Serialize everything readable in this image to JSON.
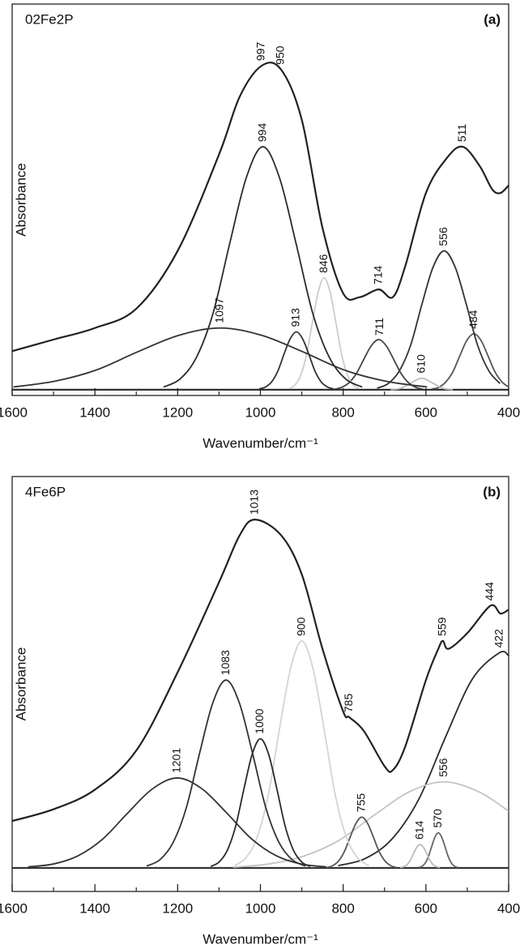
{
  "chart_data": [
    {
      "type": "line",
      "sample": "02Fe2P",
      "panel_label": "(a)",
      "x_label": "Wavenumber/cm⁻¹",
      "y_label": "Absorbance",
      "xlim": [
        1600,
        400
      ],
      "ylim": [
        -0.015,
        1
      ],
      "xticks": [
        1600,
        1400,
        1200,
        1000,
        800,
        600,
        400
      ],
      "xminorticks": [
        1500,
        1300,
        1100,
        900,
        700,
        500
      ],
      "series": [
        {
          "color": "#222222",
          "peak_labels": [
            997,
            950,
            714,
            511
          ],
          "x": [
            1600,
            1500,
            1400,
            1300,
            1200,
            1100,
            1050,
            997,
            950,
            900,
            850,
            800,
            760,
            714,
            680,
            650,
            600,
            550,
            511,
            470,
            440,
            420,
            400
          ],
          "values": [
            0.1,
            0.13,
            0.16,
            0.21,
            0.36,
            0.61,
            0.76,
            0.84,
            0.83,
            0.7,
            0.42,
            0.25,
            0.24,
            0.26,
            0.24,
            0.32,
            0.51,
            0.6,
            0.63,
            0.58,
            0.52,
            0.51,
            0.53
          ]
        },
        {
          "color": "#333333",
          "peak_labels": [
            1097
          ],
          "x": [
            1597,
            1497,
            1397,
            1297,
            1197,
            1097,
            997,
            897,
            797,
            697,
            597
          ],
          "values": [
            0.007,
            0.022,
            0.051,
            0.098,
            0.141,
            0.16,
            0.141,
            0.098,
            0.051,
            0.022,
            0.007
          ]
        },
        {
          "color": "#2a2a2a",
          "peak_labels": [
            994
          ],
          "x": [
            1234,
            1194,
            1154,
            1114,
            1074,
            1034,
            994,
            954,
            914,
            874,
            834,
            794,
            754
          ],
          "values": [
            0.007,
            0.028,
            0.085,
            0.2,
            0.38,
            0.55,
            0.63,
            0.55,
            0.38,
            0.2,
            0.085,
            0.028,
            0.007
          ]
        },
        {
          "color": "#333333",
          "peak_labels": [
            913
          ],
          "x": [
            1003,
            988,
            973,
            958,
            943,
            928,
            913,
            898,
            883,
            868,
            853,
            838,
            823
          ],
          "values": [
            0.002,
            0.007,
            0.02,
            0.048,
            0.092,
            0.132,
            0.15,
            0.132,
            0.092,
            0.048,
            0.02,
            0.007,
            0.002
          ]
        },
        {
          "color": "#cccccc",
          "peak_labels": [
            846
          ],
          "x": [
            930,
            916,
            902,
            888,
            874,
            860,
            846,
            832,
            818,
            804,
            790,
            776,
            762
          ],
          "values": [
            0.003,
            0.013,
            0.039,
            0.093,
            0.177,
            0.255,
            0.29,
            0.255,
            0.177,
            0.093,
            0.039,
            0.013,
            0.003
          ]
        },
        {
          "color": "#444444",
          "peak_labels": [
            711
          ],
          "x": [
            822,
            804,
            786,
            768,
            750,
            732,
            714,
            696,
            678,
            660,
            642,
            624,
            606
          ],
          "values": [
            0.001,
            0.006,
            0.018,
            0.042,
            0.079,
            0.114,
            0.13,
            0.114,
            0.079,
            0.042,
            0.018,
            0.006,
            0.001
          ]
        },
        {
          "color": "#bbbbbb",
          "peak_labels": [
            610
          ],
          "x": [
            685,
            660,
            635,
            610,
            585,
            560,
            535
          ],
          "values": [
            0.0,
            0.004,
            0.018,
            0.03,
            0.018,
            0.004,
            0.0
          ]
        },
        {
          "color": "#333333",
          "peak_labels": [
            556
          ],
          "x": [
            718,
            691,
            664,
            637,
            610,
            583,
            556,
            529,
            502,
            475,
            448,
            421
          ],
          "values": [
            0.004,
            0.016,
            0.049,
            0.115,
            0.22,
            0.317,
            0.36,
            0.317,
            0.22,
            0.115,
            0.049,
            0.016
          ]
        },
        {
          "color": "#555555",
          "peak_labels": [
            484
          ],
          "x": [
            586,
            569,
            552,
            535,
            518,
            501,
            484,
            467,
            450,
            433,
            416,
            400
          ],
          "values": [
            0.002,
            0.006,
            0.02,
            0.046,
            0.088,
            0.128,
            0.145,
            0.128,
            0.088,
            0.046,
            0.02,
            0.007
          ]
        }
      ]
    },
    {
      "type": "line",
      "sample": "4Fe6P",
      "panel_label": "(b)",
      "x_label": "Wavenumber/cm⁻¹",
      "y_label": "Absorbance",
      "xlim": [
        1600,
        400
      ],
      "ylim": [
        -0.06,
        1
      ],
      "xticks": [
        1600,
        1400,
        1200,
        1000,
        800,
        600,
        400
      ],
      "xminorticks": [
        1500,
        1300,
        1100,
        900,
        700,
        500
      ],
      "series": [
        {
          "color": "#222222",
          "peak_labels": [
            1013,
            785,
            559,
            444
          ],
          "x": [
            1600,
            1500,
            1400,
            1300,
            1200,
            1100,
            1050,
            1013,
            950,
            900,
            850,
            800,
            785,
            750,
            700,
            680,
            650,
            600,
            570,
            559,
            545,
            500,
            444,
            420,
            400
          ],
          "values": [
            0.12,
            0.15,
            0.2,
            0.3,
            0.5,
            0.73,
            0.85,
            0.89,
            0.85,
            0.75,
            0.56,
            0.4,
            0.385,
            0.35,
            0.26,
            0.25,
            0.31,
            0.48,
            0.56,
            0.58,
            0.56,
            0.6,
            0.67,
            0.65,
            0.66
          ]
        },
        {
          "color": "#333333",
          "peak_labels": [
            1201
          ],
          "x": [
            1561,
            1501,
            1441,
            1381,
            1321,
            1261,
            1201,
            1141,
            1081,
            1021,
            961,
            901,
            841
          ],
          "values": [
            0.003,
            0.01,
            0.031,
            0.074,
            0.14,
            0.202,
            0.23,
            0.202,
            0.14,
            0.074,
            0.031,
            0.01,
            0.003
          ]
        },
        {
          "color": "#333333",
          "peak_labels": [
            1083
          ],
          "x": [
            1275,
            1243,
            1211,
            1179,
            1147,
            1115,
            1083,
            1051,
            1019,
            987,
            955,
            923,
            891
          ],
          "values": [
            0.005,
            0.021,
            0.065,
            0.154,
            0.293,
            0.422,
            0.48,
            0.422,
            0.293,
            0.154,
            0.065,
            0.021,
            0.005
          ]
        },
        {
          "color": "#2a2a2a",
          "peak_labels": [
            1000
          ],
          "x": [
            1120,
            1100,
            1080,
            1060,
            1040,
            1020,
            1000,
            980,
            960,
            940,
            920,
            900,
            880
          ],
          "values": [
            0.004,
            0.015,
            0.045,
            0.106,
            0.201,
            0.29,
            0.33,
            0.29,
            0.201,
            0.106,
            0.045,
            0.015,
            0.004
          ]
        },
        {
          "color": "#d4d4d4",
          "peak_labels": [
            900
          ],
          "x": [
            1062,
            1035,
            1008,
            981,
            954,
            927,
            900,
            873,
            846,
            819,
            792,
            765,
            738
          ],
          "values": [
            0.006,
            0.026,
            0.078,
            0.186,
            0.354,
            0.51,
            0.58,
            0.51,
            0.354,
            0.186,
            0.078,
            0.026,
            0.006
          ]
        },
        {
          "color": "#555555",
          "peak_labels": [
            755
          ],
          "x": [
            839,
            825,
            811,
            797,
            783,
            769,
            755,
            741,
            727,
            713,
            699,
            685,
            671
          ],
          "values": [
            0.001,
            0.006,
            0.018,
            0.042,
            0.079,
            0.114,
            0.13,
            0.114,
            0.079,
            0.042,
            0.018,
            0.006,
            0.001
          ]
        },
        {
          "color": "#bbbbbb",
          "peak_labels": [
            614
          ],
          "x": [
            662,
            654,
            646,
            638,
            630,
            622,
            614,
            606,
            598,
            590,
            582,
            574,
            566
          ],
          "values": [
            0.001,
            0.003,
            0.008,
            0.019,
            0.037,
            0.053,
            0.06,
            0.053,
            0.037,
            0.019,
            0.008,
            0.003,
            0.001
          ]
        },
        {
          "color": "#666666",
          "peak_labels": [
            570
          ],
          "x": [
            618,
            610,
            602,
            594,
            586,
            578,
            570,
            562,
            554,
            546,
            538,
            530,
            522
          ],
          "values": [
            0.001,
            0.004,
            0.012,
            0.029,
            0.055,
            0.079,
            0.09,
            0.079,
            0.055,
            0.029,
            0.012,
            0.004,
            0.001
          ]
        },
        {
          "color": "#c4c4c4",
          "peak_labels": [
            556
          ],
          "x": [
            1066,
            981,
            896,
            811,
            726,
            641,
            556,
            471,
            400
          ],
          "values": [
            0.002,
            0.01,
            0.03,
            0.07,
            0.134,
            0.194,
            0.22,
            0.194,
            0.145
          ]
        },
        {
          "color": "#2a2a2a",
          "peak_labels": [
            422
          ],
          "x": [
            812,
            747,
            682,
            617,
            552,
            487,
            422,
            400
          ],
          "values": [
            0.006,
            0.024,
            0.074,
            0.176,
            0.336,
            0.484,
            0.55,
            0.542
          ]
        }
      ]
    }
  ]
}
